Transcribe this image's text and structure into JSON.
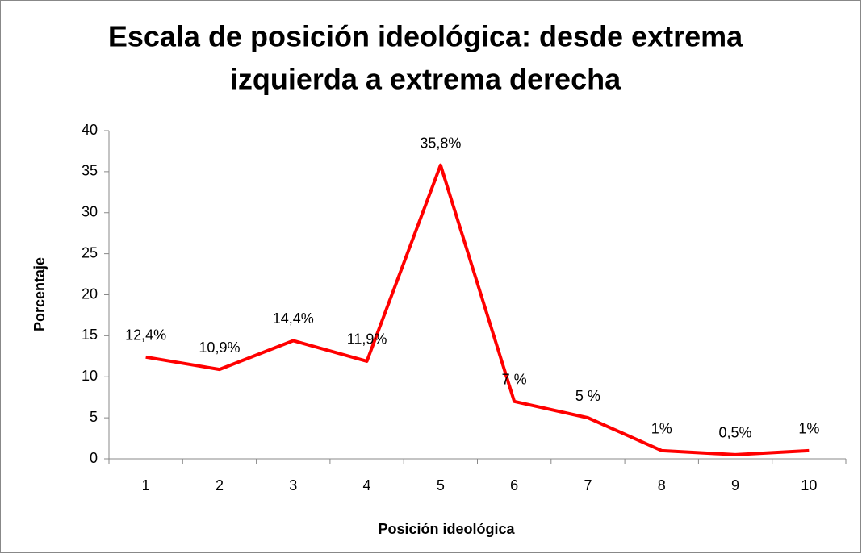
{
  "chart_data": {
    "type": "line",
    "title": [
      "Escala de posición ideológica: desde extrema",
      "izquierda a extrema derecha"
    ],
    "x_label": "Posición ideológica",
    "y_label": "Porcentaje",
    "categories": [
      "1",
      "2",
      "3",
      "4",
      "5",
      "6",
      "7",
      "8",
      "9",
      "10"
    ],
    "values": [
      12.4,
      10.9,
      14.4,
      11.9,
      35.8,
      7,
      5,
      1,
      0.5,
      1
    ],
    "value_labels": [
      "12,4%",
      "10,9%",
      "14,4%",
      "11,9%",
      "35,8%",
      "7 %",
      "5 %",
      "1%",
      "0,5%",
      "1%"
    ],
    "color": "#ff0000",
    "ylim": [
      0,
      40
    ],
    "yticks": [
      0,
      5,
      10,
      15,
      20,
      25,
      30,
      35,
      40
    ],
    "grid": false
  }
}
